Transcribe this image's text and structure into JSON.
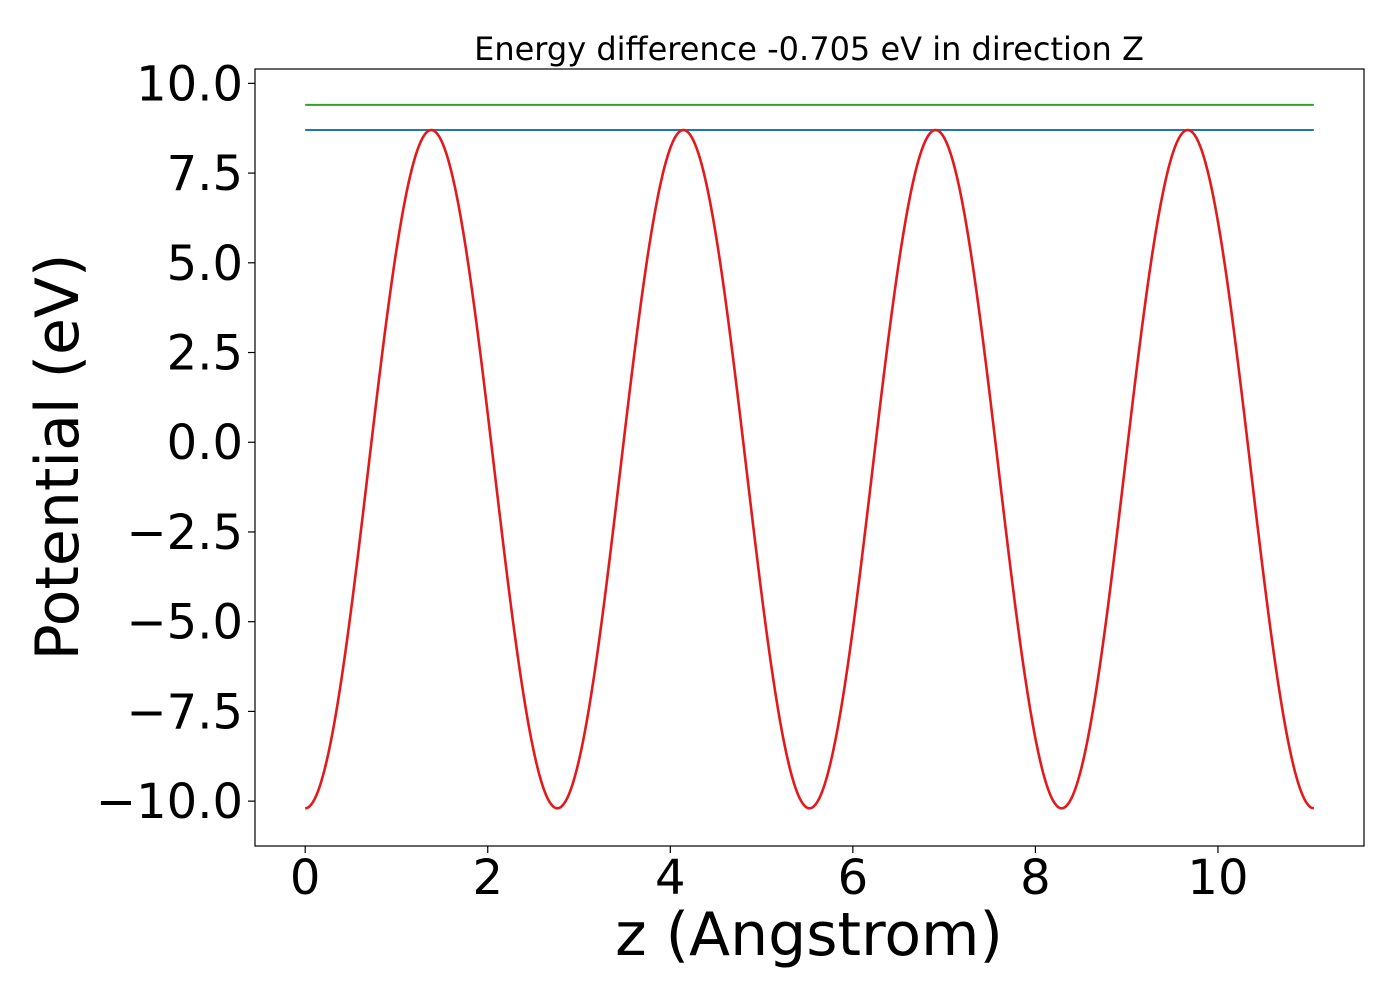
{
  "chart_data": {
    "type": "line",
    "title": "Energy difference -0.705 eV in direction Z",
    "xlabel": "z (Angstrom)",
    "ylabel": "Potential (eV)",
    "xlim": [
      -0.55,
      11.6
    ],
    "ylim": [
      -11.25,
      10.4
    ],
    "xticks": [
      0,
      2,
      4,
      6,
      8,
      10
    ],
    "xtick_labels": [
      "0",
      "2",
      "4",
      "6",
      "8",
      "10"
    ],
    "yticks": [
      -10,
      -7.5,
      -5,
      -2.5,
      0,
      2.5,
      5,
      7.5,
      10
    ],
    "ytick_labels": [
      "−10.0",
      "−7.5",
      "−5.0",
      "−2.5",
      "0.0",
      "2.5",
      "5.0",
      "7.5",
      "10.0"
    ],
    "grid": false,
    "legend": "none",
    "series": [
      {
        "kind": "cosine-wave",
        "color": "#e31a1c",
        "x_range": [
          0,
          11.05
        ],
        "min": -10.2,
        "max": 8.7,
        "period": 2.7625,
        "x_min_at": 0
      },
      {
        "kind": "hline",
        "color": "#33a02c",
        "x_range": [
          0,
          11.05
        ],
        "y": 9.4
      },
      {
        "kind": "hline",
        "color": "#1f78b4",
        "x_range": [
          0,
          11.05
        ],
        "y": 8.7
      }
    ]
  }
}
